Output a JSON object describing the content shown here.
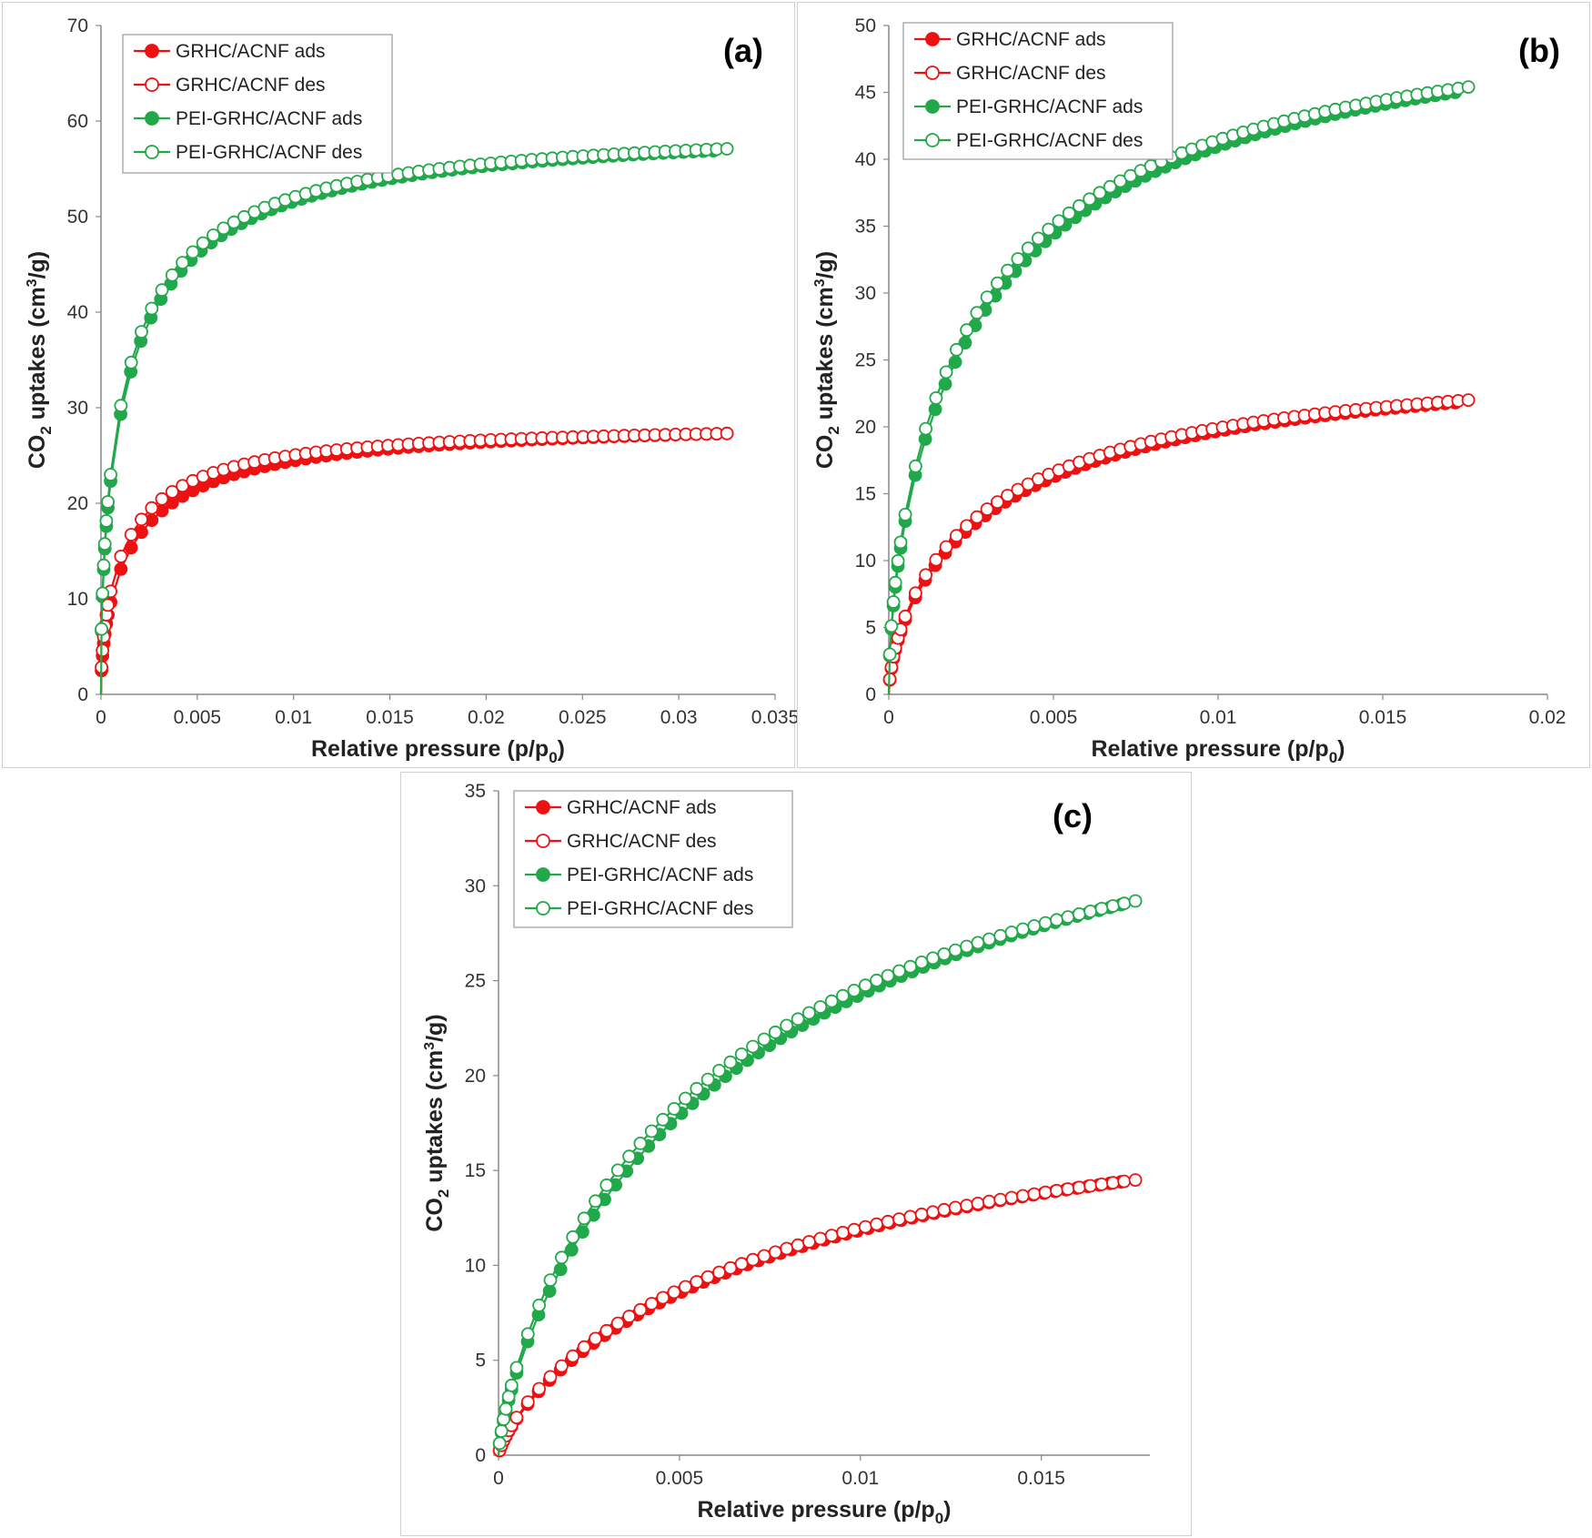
{
  "colors": {
    "ads_red": "#ee1111",
    "des_red": "#ee1111",
    "green": "#21a84a",
    "axis": "#888888"
  },
  "chart_data": [
    {
      "type": "scatter",
      "panel_label": "(a)",
      "xlabel": "Relative pressure (p/p",
      "xlabel_sub": "0",
      "xlabel_end": ")",
      "ylabel_pre": "CO",
      "ylabel_sub": "2",
      "ylabel_mid": " uptakes (cm",
      "ylabel_sup": "3",
      "ylabel_end": "/g)",
      "xlim": [
        0,
        0.035
      ],
      "ylim": [
        0,
        70
      ],
      "xticks": [
        "0",
        "0.005",
        "0.01",
        "0.015",
        "0.02",
        "0.025",
        "0.03",
        "0.035"
      ],
      "yticks": [
        "0",
        "10",
        "20",
        "30",
        "40",
        "50",
        "60",
        "70"
      ],
      "legend": [
        "GRHC/ACNF ads",
        "GRHC/ACNF des",
        "PEI-GRHC/ACNF ads",
        "PEI-GRHC/ACNF des"
      ],
      "series": [
        {
          "name": "GRHC/ACNF ads",
          "style": "ads-red",
          "xmax": 0.0325,
          "ymax": 27.3,
          "k": 0.004,
          "exp": 0.5
        },
        {
          "name": "GRHC/ACNF des",
          "style": "des-red",
          "xmax": 0.0325,
          "ymax": 27.3,
          "k": 0.003,
          "exp": 0.5
        },
        {
          "name": "PEI-GRHC/ACNF ads",
          "style": "ads-green",
          "xmax": 0.0318,
          "ymax": 56.9,
          "k": 0.004,
          "exp": 0.45
        },
        {
          "name": "PEI-GRHC/ACNF des",
          "style": "des-green",
          "xmax": 0.0325,
          "ymax": 57.1,
          "k": 0.0037,
          "exp": 0.45
        }
      ]
    },
    {
      "type": "scatter",
      "panel_label": "(b)",
      "xlabel": "Relative pressure (p/p",
      "xlabel_sub": "0",
      "xlabel_end": ")",
      "ylabel_pre": "CO",
      "ylabel_sub": "2",
      "ylabel_mid": " uptakes (cm",
      "ylabel_sup": "3",
      "ylabel_end": "/g)",
      "xlim": [
        0,
        0.02
      ],
      "ylim": [
        0,
        50
      ],
      "xticks": [
        "0",
        "0.005",
        "0.01",
        "0.015",
        "0.02"
      ],
      "yticks": [
        "0",
        "5",
        "10",
        "15",
        "20",
        "25",
        "30",
        "35",
        "40",
        "45",
        "50"
      ],
      "legend": [
        "GRHC/ACNF ads",
        "GRHC/ACNF des",
        "PEI-GRHC/ACNF ads",
        "PEI-GRHC/ACNF des"
      ],
      "series": [
        {
          "name": "GRHC/ACNF ads",
          "style": "ads-red",
          "xmax": 0.0172,
          "ymax": 21.8,
          "k": 0.006,
          "exp": 0.6
        },
        {
          "name": "GRHC/ACNF des",
          "style": "des-red",
          "xmax": 0.0176,
          "ymax": 22.0,
          "k": 0.0055,
          "exp": 0.6
        },
        {
          "name": "PEI-GRHC/ACNF ads",
          "style": "ads-green",
          "xmax": 0.0172,
          "ymax": 45.0,
          "k": 0.006,
          "exp": 0.55
        },
        {
          "name": "PEI-GRHC/ACNF des",
          "style": "des-green",
          "xmax": 0.0176,
          "ymax": 45.4,
          "k": 0.0055,
          "exp": 0.55
        }
      ]
    },
    {
      "type": "scatter",
      "panel_label": "(c)",
      "xlabel": "Relative pressure (p/p",
      "xlabel_sub": "0",
      "xlabel_end": ")",
      "ylabel_pre": "CO",
      "ylabel_sub": "2",
      "ylabel_mid": " uptakes (cm",
      "ylabel_sup": "3",
      "ylabel_end": "/g)",
      "xlim": [
        0,
        0.018
      ],
      "ylim": [
        0,
        35
      ],
      "xticks": [
        "0",
        "0.005",
        "0.01",
        "0.015"
      ],
      "xtick_values": [
        0,
        0.005,
        0.01,
        0.015
      ],
      "yticks": [
        "0",
        "5",
        "10",
        "15",
        "20",
        "25",
        "30",
        "35"
      ],
      "legend": [
        "GRHC/ACNF ads",
        "GRHC/ACNF des",
        "PEI-GRHC/ACNF ads",
        "PEI-GRHC/ACNF des"
      ],
      "series": [
        {
          "name": "GRHC/ACNF ads",
          "style": "ads-red",
          "xmax": 0.0172,
          "ymax": 14.4,
          "k": 0.012,
          "exp": 0.75
        },
        {
          "name": "GRHC/ACNF des",
          "style": "des-red",
          "xmax": 0.0176,
          "ymax": 14.5,
          "k": 0.011,
          "exp": 0.75
        },
        {
          "name": "PEI-GRHC/ACNF ads",
          "style": "ads-green",
          "xmax": 0.0172,
          "ymax": 29.0,
          "k": 0.011,
          "exp": 0.72
        },
        {
          "name": "PEI-GRHC/ACNF des",
          "style": "des-green",
          "xmax": 0.0176,
          "ymax": 29.2,
          "k": 0.0095,
          "exp": 0.72
        }
      ]
    }
  ]
}
